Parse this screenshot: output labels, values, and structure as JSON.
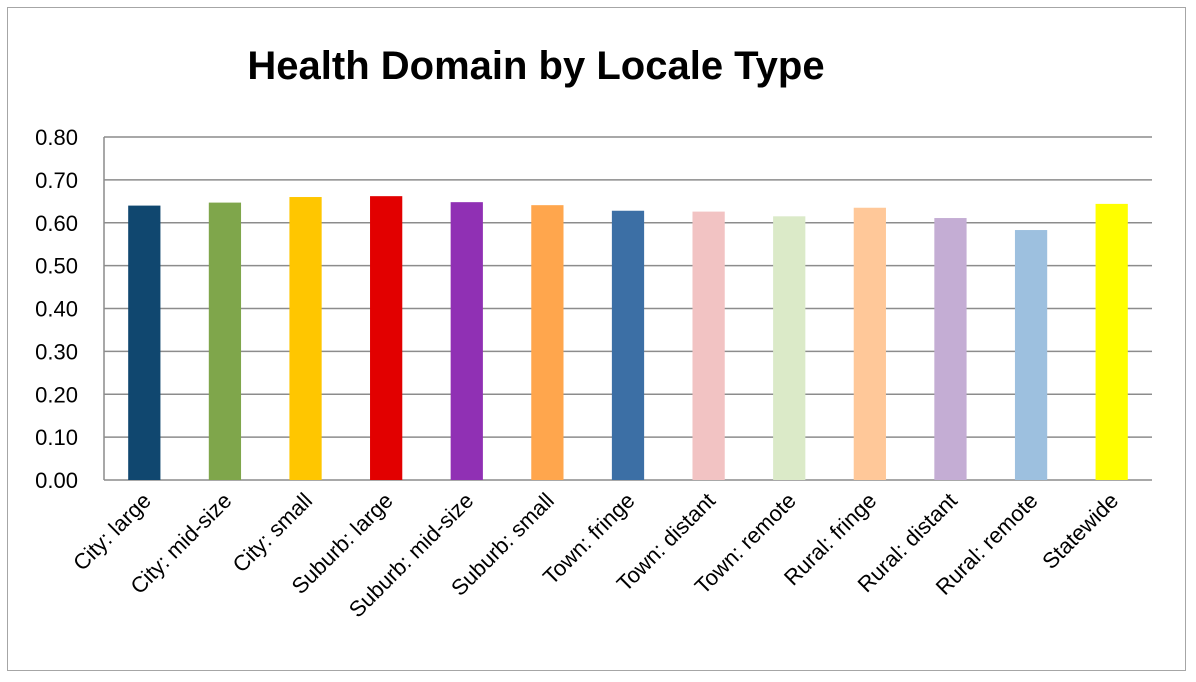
{
  "chart_data": {
    "type": "bar",
    "title": "Health Domain by Locale Type",
    "xlabel": "",
    "ylabel": "",
    "ylim": [
      0,
      0.8
    ],
    "yticks": [
      "0.00",
      "0.10",
      "0.20",
      "0.30",
      "0.40",
      "0.50",
      "0.60",
      "0.70",
      "0.80"
    ],
    "grid": true,
    "legend": "none",
    "categories": [
      "City: large",
      "City: mid-size",
      "City: small",
      "Suburb: large",
      "Suburb: mid-size",
      "Suburb: small",
      "Town: fringe",
      "Town: distant",
      "Town: remote",
      "Rural: fringe",
      "Rural: distant",
      "Rural: remote",
      "Statewide"
    ],
    "values": [
      0.64,
      0.647,
      0.66,
      0.662,
      0.648,
      0.641,
      0.628,
      0.626,
      0.615,
      0.635,
      0.611,
      0.583,
      0.644
    ],
    "colors": [
      "#10476f",
      "#7fa64b",
      "#ffc600",
      "#e20000",
      "#9030b4",
      "#ffa64d",
      "#3c6fa5",
      "#f2c3c3",
      "#dbeac8",
      "#ffc899",
      "#c4add4",
      "#9dc0df",
      "#ffff00"
    ]
  }
}
